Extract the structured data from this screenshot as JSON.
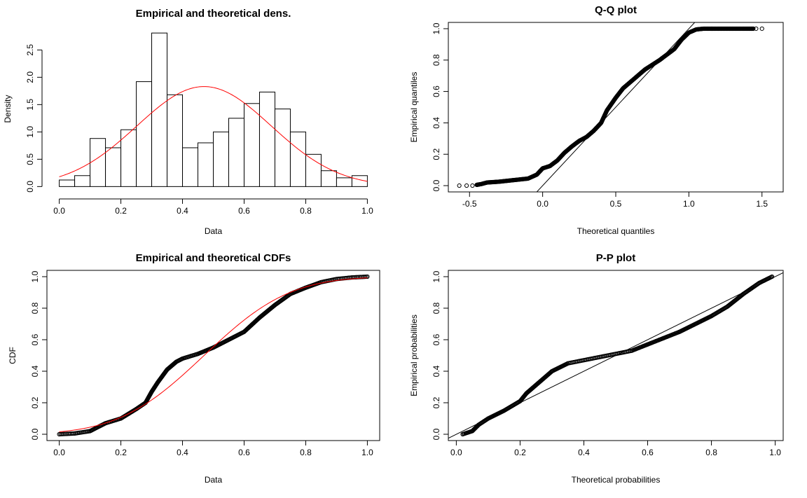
{
  "chart_data": [
    {
      "id": "density",
      "type": "bar",
      "title": "Empirical and theoretical dens.",
      "xlabel": "Data",
      "ylabel": "Density",
      "xlim": [
        0,
        1
      ],
      "ylim": [
        0,
        2.8
      ],
      "xticks": [
        "0.0",
        "0.2",
        "0.4",
        "0.6",
        "0.8",
        "1.0"
      ],
      "yticks": [
        "0.0",
        "0.5",
        "1.0",
        "1.5",
        "2.0",
        "2.5"
      ],
      "bin_width": 0.05,
      "bin_starts": [
        0,
        0.05,
        0.1,
        0.15,
        0.2,
        0.25,
        0.3,
        0.35,
        0.4,
        0.45,
        0.5,
        0.55,
        0.6,
        0.65,
        0.7,
        0.75,
        0.8,
        0.85,
        0.9,
        0.95
      ],
      "values": [
        0.12,
        0.2,
        0.88,
        0.71,
        1.04,
        1.92,
        2.81,
        1.68,
        0.71,
        0.8,
        1.0,
        1.25,
        1.52,
        1.73,
        1.42,
        1.0,
        0.59,
        0.29,
        0.16,
        0.2
      ],
      "curve": {
        "name": "normal density",
        "color": "#ff0000",
        "mean": 0.47,
        "sd": 0.218
      }
    },
    {
      "id": "qq",
      "type": "scatter",
      "title": "Q-Q plot",
      "xlabel": "Theoretical quantiles",
      "ylabel": "Empirical quantiles",
      "xlim": [
        -0.6,
        1.6
      ],
      "ylim": [
        0,
        1
      ],
      "xticks": [
        "-0.5",
        "0.0",
        "0.5",
        "1.0",
        "1.5"
      ],
      "yticks": [
        "0.0",
        "0.2",
        "0.4",
        "0.6",
        "0.8",
        "1.0"
      ],
      "points_x": [
        -0.57,
        -0.52,
        -0.48,
        -0.45,
        -0.42,
        -0.38,
        -0.3,
        -0.2,
        -0.1,
        -0.04,
        0.0,
        0.05,
        0.1,
        0.15,
        0.2,
        0.25,
        0.3,
        0.35,
        0.4,
        0.44,
        0.47,
        0.5,
        0.55,
        0.6,
        0.7,
        0.8,
        0.9,
        0.95,
        1.0,
        1.05,
        1.1,
        1.2,
        1.3,
        1.4,
        1.44,
        1.46,
        1.5
      ],
      "points_y": [
        0.0,
        0.0,
        0.0,
        0.005,
        0.01,
        0.02,
        0.025,
        0.035,
        0.045,
        0.07,
        0.11,
        0.125,
        0.16,
        0.21,
        0.25,
        0.285,
        0.31,
        0.35,
        0.4,
        0.48,
        0.52,
        0.56,
        0.62,
        0.66,
        0.74,
        0.8,
        0.87,
        0.93,
        0.975,
        0.995,
        1.0,
        1.0,
        1.0,
        1.0,
        1.0,
        1.0,
        1.0
      ],
      "reference_line": {
        "slope": 1,
        "intercept": 0
      }
    },
    {
      "id": "cdf",
      "type": "line",
      "title": "Empirical and theoretical CDFs",
      "xlabel": "Data",
      "ylabel": "CDF",
      "xlim": [
        0,
        1
      ],
      "ylim": [
        0,
        1
      ],
      "xticks": [
        "0.0",
        "0.2",
        "0.4",
        "0.6",
        "0.8",
        "1.0"
      ],
      "yticks": [
        "0.0",
        "0.2",
        "0.4",
        "0.6",
        "0.8",
        "1.0"
      ],
      "empirical_x": [
        0.0,
        0.05,
        0.1,
        0.13,
        0.15,
        0.2,
        0.25,
        0.28,
        0.3,
        0.32,
        0.35,
        0.38,
        0.4,
        0.45,
        0.5,
        0.55,
        0.6,
        0.65,
        0.7,
        0.75,
        0.8,
        0.85,
        0.9,
        0.95,
        1.0
      ],
      "empirical_y": [
        0.0,
        0.005,
        0.02,
        0.05,
        0.07,
        0.1,
        0.16,
        0.2,
        0.27,
        0.33,
        0.41,
        0.46,
        0.48,
        0.51,
        0.55,
        0.6,
        0.65,
        0.74,
        0.82,
        0.89,
        0.93,
        0.965,
        0.985,
        0.995,
        1.0
      ],
      "theoretical": {
        "name": "normal CDF",
        "color": "#ff0000",
        "mean": 0.47,
        "sd": 0.218
      }
    },
    {
      "id": "pp",
      "type": "scatter",
      "title": "P-P plot",
      "xlabel": "Theoretical probabilities",
      "ylabel": "Empirical probabilities",
      "xlim": [
        0,
        1
      ],
      "ylim": [
        0,
        1
      ],
      "xticks": [
        "0.0",
        "0.2",
        "0.4",
        "0.6",
        "0.8",
        "1.0"
      ],
      "yticks": [
        "0.0",
        "0.2",
        "0.4",
        "0.6",
        "0.8",
        "1.0"
      ],
      "points_x": [
        0.02,
        0.05,
        0.07,
        0.1,
        0.15,
        0.2,
        0.22,
        0.26,
        0.3,
        0.35,
        0.4,
        0.45,
        0.5,
        0.55,
        0.6,
        0.65,
        0.7,
        0.75,
        0.8,
        0.85,
        0.9,
        0.95,
        0.99
      ],
      "points_y": [
        0.0,
        0.02,
        0.06,
        0.1,
        0.15,
        0.21,
        0.26,
        0.33,
        0.4,
        0.45,
        0.47,
        0.49,
        0.51,
        0.53,
        0.57,
        0.61,
        0.65,
        0.7,
        0.75,
        0.81,
        0.89,
        0.96,
        1.0
      ],
      "reference_line": {
        "slope": 1,
        "intercept": 0
      }
    }
  ]
}
